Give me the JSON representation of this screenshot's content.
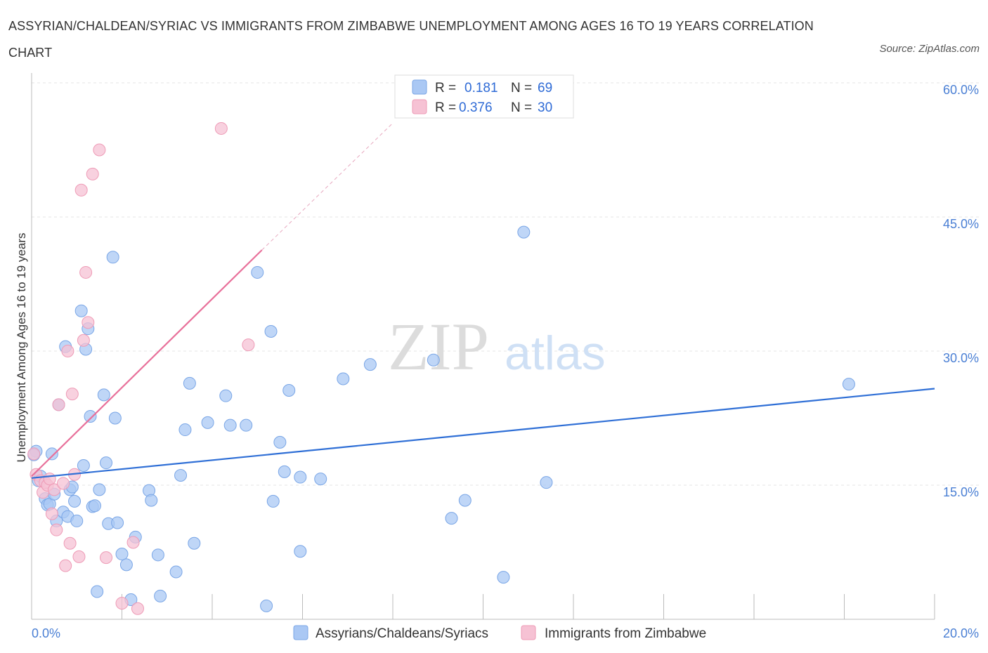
{
  "title": "ASSYRIAN/CHALDEAN/SYRIAC VS IMMIGRANTS FROM ZIMBABWE UNEMPLOYMENT AMONG AGES 16 TO 19 YEARS CORRELATION CHART",
  "source": "Source: ZipAtlas.com",
  "watermark": {
    "zip": "ZIP",
    "atlas": "atlas"
  },
  "legend": {
    "r_label": "R =",
    "n_label": "N =",
    "series1": {
      "r": "0.181",
      "n": "69"
    },
    "series2": {
      "r": "0.376",
      "n": "30"
    }
  },
  "chart_data": {
    "type": "scatter",
    "title": "ASSYRIAN/CHALDEAN/SYRIAC VS IMMIGRANTS FROM ZIMBABWE UNEMPLOYMENT AMONG AGES 16 TO 19 YEARS CORRELATION CHART",
    "xlabel": "",
    "ylabel": "Unemployment Among Ages 16 to 19 years",
    "xlim": [
      0,
      20
    ],
    "ylim": [
      0,
      60
    ],
    "x_tick_labels": [
      "0.0%",
      "20.0%"
    ],
    "y_tick_values": [
      15,
      30,
      45,
      60
    ],
    "y_tick_labels": [
      "15.0%",
      "30.0%",
      "45.0%",
      "60.0%"
    ],
    "series": [
      {
        "name": "Assyrians/Chaldeans/Syriacs",
        "color": "#7aa6e6",
        "fill": "#aac8f4",
        "r": 0.181,
        "n": 69,
        "trend": {
          "x1": 0.0,
          "y1": 15.8,
          "x2": 20.0,
          "y2": 25.8,
          "dashed_to": null
        },
        "points": [
          [
            0.1,
            18.8
          ],
          [
            0.15,
            15.5
          ],
          [
            0.2,
            16.0
          ],
          [
            0.3,
            13.5
          ],
          [
            0.35,
            12.8
          ],
          [
            0.4,
            12.9
          ],
          [
            0.45,
            18.5
          ],
          [
            0.5,
            14.0
          ],
          [
            0.55,
            11.0
          ],
          [
            0.6,
            24.0
          ],
          [
            0.7,
            12.0
          ],
          [
            0.75,
            30.5
          ],
          [
            0.8,
            11.5
          ],
          [
            0.85,
            14.5
          ],
          [
            0.9,
            14.8
          ],
          [
            0.95,
            13.2
          ],
          [
            1.0,
            11.0
          ],
          [
            1.1,
            34.5
          ],
          [
            1.15,
            17.2
          ],
          [
            1.2,
            30.2
          ],
          [
            1.25,
            32.5
          ],
          [
            1.3,
            22.7
          ],
          [
            1.35,
            12.6
          ],
          [
            1.4,
            12.7
          ],
          [
            1.45,
            3.1
          ],
          [
            1.5,
            14.5
          ],
          [
            1.6,
            25.1
          ],
          [
            1.65,
            17.5
          ],
          [
            1.7,
            10.7
          ],
          [
            1.8,
            40.5
          ],
          [
            1.85,
            22.5
          ],
          [
            1.9,
            10.8
          ],
          [
            2.0,
            7.3
          ],
          [
            2.1,
            6.1
          ],
          [
            2.2,
            2.2
          ],
          [
            2.3,
            9.2
          ],
          [
            2.6,
            14.4
          ],
          [
            2.65,
            13.3
          ],
          [
            2.8,
            7.2
          ],
          [
            2.85,
            2.6
          ],
          [
            3.2,
            5.3
          ],
          [
            3.3,
            16.1
          ],
          [
            3.4,
            21.2
          ],
          [
            3.5,
            26.4
          ],
          [
            3.6,
            8.5
          ],
          [
            3.9,
            22.0
          ],
          [
            4.3,
            25.0
          ],
          [
            4.4,
            21.7
          ],
          [
            4.75,
            21.7
          ],
          [
            5.0,
            38.8
          ],
          [
            5.2,
            1.5
          ],
          [
            5.3,
            32.2
          ],
          [
            5.35,
            13.2
          ],
          [
            5.5,
            19.8
          ],
          [
            5.6,
            16.5
          ],
          [
            5.7,
            25.6
          ],
          [
            5.95,
            7.6
          ],
          [
            5.95,
            15.9
          ],
          [
            6.4,
            15.7
          ],
          [
            6.9,
            26.9
          ],
          [
            7.5,
            28.5
          ],
          [
            8.9,
            29.0
          ],
          [
            9.3,
            11.3
          ],
          [
            9.6,
            13.3
          ],
          [
            10.45,
            4.7
          ],
          [
            10.9,
            43.3
          ],
          [
            11.4,
            15.3
          ],
          [
            18.1,
            26.3
          ],
          [
            0.05,
            18.4
          ]
        ]
      },
      {
        "name": "Immigrants from Zimbabwe",
        "color": "#ee9bb6",
        "fill": "#f6c2d4",
        "r": 0.376,
        "n": 30,
        "trend": {
          "x1": 0.0,
          "y1": 16.0,
          "x2": 5.1,
          "y2": 41.3,
          "dashed_to": [
            8.0,
            55.5
          ]
        },
        "points": [
          [
            0.05,
            18.5
          ],
          [
            0.1,
            16.2
          ],
          [
            0.2,
            15.5
          ],
          [
            0.25,
            14.2
          ],
          [
            0.3,
            15.3
          ],
          [
            0.35,
            15.0
          ],
          [
            0.4,
            15.7
          ],
          [
            0.45,
            11.8
          ],
          [
            0.5,
            14.5
          ],
          [
            0.55,
            10.0
          ],
          [
            0.6,
            24.0
          ],
          [
            0.7,
            15.2
          ],
          [
            0.75,
            6.0
          ],
          [
            0.8,
            30.0
          ],
          [
            0.85,
            8.5
          ],
          [
            0.9,
            25.2
          ],
          [
            0.95,
            16.2
          ],
          [
            1.05,
            7.0
          ],
          [
            1.1,
            48.0
          ],
          [
            1.15,
            31.2
          ],
          [
            1.2,
            38.8
          ],
          [
            1.25,
            33.2
          ],
          [
            1.35,
            49.8
          ],
          [
            1.5,
            52.5
          ],
          [
            1.65,
            6.9
          ],
          [
            2.0,
            1.8
          ],
          [
            2.25,
            8.6
          ],
          [
            2.35,
            1.2
          ],
          [
            4.2,
            54.9
          ],
          [
            4.8,
            30.7
          ]
        ]
      }
    ],
    "legend_position": "top-center"
  }
}
